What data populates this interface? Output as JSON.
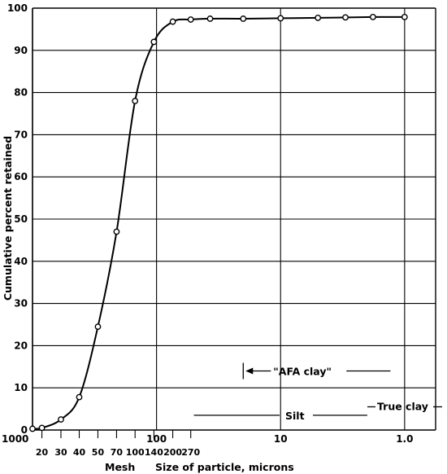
{
  "chart_data": {
    "type": "line",
    "xscale": "log-reversed",
    "xlim": [
      1000,
      1.0
    ],
    "ylim": [
      0,
      100
    ],
    "grid": true,
    "ylabel": "Cumulative percent retained",
    "xlabel": "Size of particle, microns",
    "mesh_label": "Mesh",
    "y_ticks": [
      0,
      10,
      20,
      30,
      40,
      50,
      60,
      70,
      80,
      90,
      100
    ],
    "x_ticks": [
      {
        "value": 1000,
        "label": "1000"
      },
      {
        "value": 100,
        "label": "100"
      },
      {
        "value": 10,
        "label": "10"
      },
      {
        "value": 1.0,
        "label": "1.0"
      }
    ],
    "mesh_ticks": [
      {
        "microns": 840,
        "label": "20"
      },
      {
        "microns": 590,
        "label": "30"
      },
      {
        "microns": 420,
        "label": "40"
      },
      {
        "microns": 297,
        "label": "50"
      },
      {
        "microns": 210,
        "label": "70"
      },
      {
        "microns": 149,
        "label": "100"
      },
      {
        "microns": 105,
        "label": "140"
      },
      {
        "microns": 74,
        "label": "200"
      },
      {
        "microns": 53,
        "label": "270"
      }
    ],
    "series": [
      {
        "points": [
          {
            "x": 1000,
            "y": 0.3
          },
          {
            "x": 840,
            "y": 0.5
          },
          {
            "x": 590,
            "y": 2.5
          },
          {
            "x": 420,
            "y": 7.8
          },
          {
            "x": 297,
            "y": 24.5
          },
          {
            "x": 210,
            "y": 47
          },
          {
            "x": 149,
            "y": 78
          },
          {
            "x": 105,
            "y": 92
          },
          {
            "x": 74,
            "y": 96.8
          },
          {
            "x": 53,
            "y": 97.3
          },
          {
            "x": 37,
            "y": 97.5
          },
          {
            "x": 20,
            "y": 97.5
          },
          {
            "x": 10,
            "y": 97.6
          },
          {
            "x": 5,
            "y": 97.7
          },
          {
            "x": 3,
            "y": 97.8
          },
          {
            "x": 1.8,
            "y": 97.9
          },
          {
            "x": 1.0,
            "y": 97.9
          }
        ]
      }
    ],
    "annotations": {
      "afa_clay": {
        "label": "\"AFA clay\"",
        "from": 20,
        "to": 1.3,
        "y": 14
      },
      "silt": {
        "label": "Silt",
        "from": 50,
        "to": 2,
        "y": 3.5
      },
      "true_clay": {
        "label": "True clay",
        "from": 2,
        "to": 0.6,
        "y": 5.5
      }
    }
  }
}
